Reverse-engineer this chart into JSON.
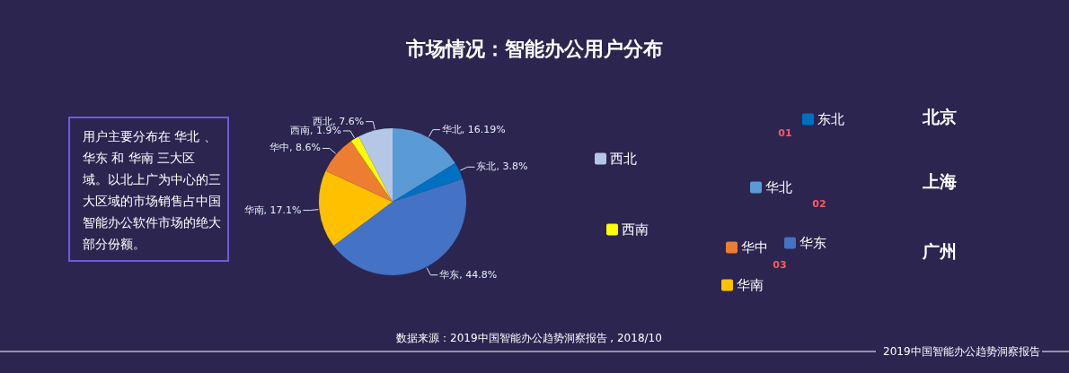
{
  "chart_data": {
    "type": "pie",
    "title": "市场情况：智能办公用户分布",
    "categories": [
      "华北",
      "东北",
      "华东",
      "华南",
      "华中",
      "西南",
      "西北"
    ],
    "values": [
      16.19,
      3.8,
      44.8,
      17.1,
      8.6,
      1.9,
      7.6
    ],
    "colors": [
      "#5b9bd5",
      "#0070c0",
      "#4472c4",
      "#ffc000",
      "#ed7d31",
      "#ffff00",
      "#b4c7e7"
    ],
    "value_labels": [
      "华北, 16.19%",
      "东北, 3.8%",
      "华东, 44.8%",
      "华南, 17.1%",
      "华中, 8.6%",
      "西南, 1.9%",
      "西北, 7.6%"
    ],
    "legend": "right",
    "annotations": [
      "用户主要分布在 华北 、华东 和 华南 三大区域。以北上广为中心的三大区域的市场销售占中国智能办公软件市场的绝大部分份额。",
      "数据来源：2019中国智能办公趋势洞察报告 , 2018/10",
      "2019中国智能办公趋势洞察报告",
      "01",
      "02",
      "03",
      "北京",
      "上海",
      "广州"
    ]
  }
}
